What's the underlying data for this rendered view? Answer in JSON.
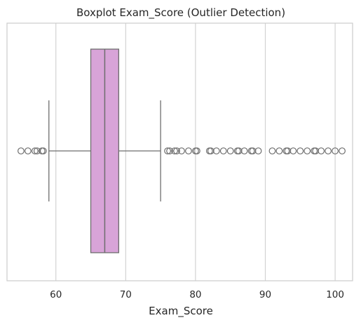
{
  "chart_data": {
    "type": "boxplot",
    "orientation": "horizontal",
    "title": "Boxplot Exam_Score (Outlier Detection)",
    "xlabel": "Exam_Score",
    "ylabel": "",
    "xlim": [
      53,
      102.5
    ],
    "xticks": [
      60,
      70,
      80,
      90,
      100
    ],
    "grid": "vertical",
    "box_color": "#d8a4d8",
    "line_color": "#6e6e6e",
    "grid_color": "#d3d3d3",
    "stats": {
      "whisker_low": 59,
      "q1": 65,
      "median": 67,
      "q3": 69,
      "whisker_high": 75
    },
    "outliers": [
      55,
      56,
      57,
      57.3,
      58,
      58.2,
      76,
      76.3,
      77,
      77.3,
      78,
      79,
      80,
      80.2,
      82,
      82.2,
      83,
      84,
      85,
      86,
      86.2,
      87,
      88,
      88.2,
      89,
      91,
      92,
      93,
      93.2,
      94,
      95,
      96,
      97,
      97.2,
      98,
      99,
      100,
      101
    ]
  }
}
